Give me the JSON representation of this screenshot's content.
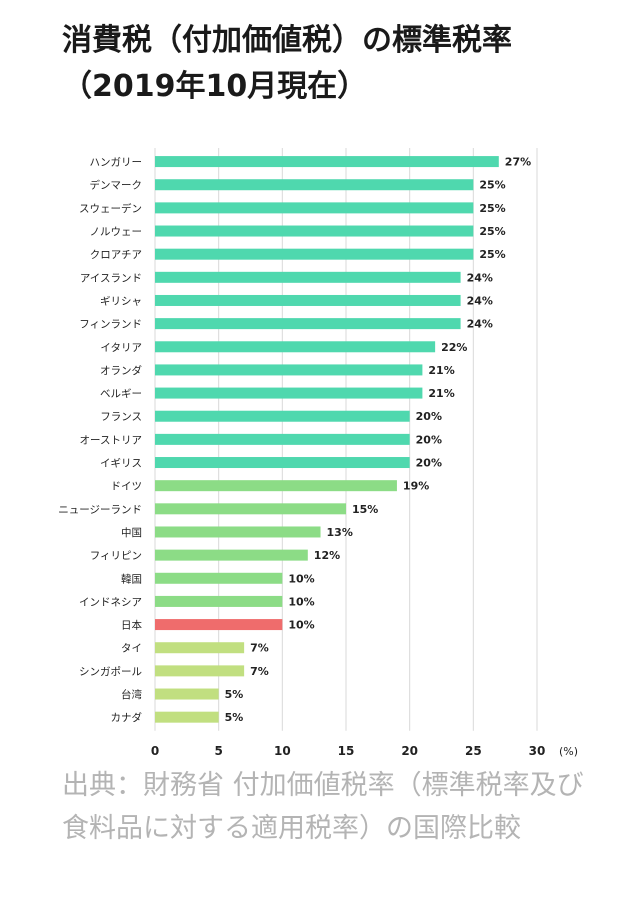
{
  "page": {
    "title_line1": "消費税（付加価値税）の標準税率",
    "title_line2": "（2019年10月現在）",
    "source": "出典：財務省 付加価値税率（標準税率及び食料品に対する適用税率）の国際比較"
  },
  "colors": {
    "tier_high": "#4fd8ae",
    "tier_mid": "#8cdc86",
    "tier_low": "#c1df80",
    "highlight": "#ef6c6c",
    "grid": "#d9d9d9",
    "text": "#222222"
  },
  "chart_data": {
    "type": "bar",
    "orientation": "horizontal",
    "categories": [
      "ハンガリー",
      "デンマーク",
      "スウェーデン",
      "ノルウェー",
      "クロアチア",
      "アイスランド",
      "ギリシャ",
      "フィンランド",
      "イタリア",
      "オランダ",
      "ベルギー",
      "フランス",
      "オーストリア",
      "イギリス",
      "ドイツ",
      "ニュージーランド",
      "中国",
      "フィリピン",
      "韓国",
      "インドネシア",
      "日本",
      "タイ",
      "シンガポール",
      "台湾",
      "カナダ"
    ],
    "values": [
      27,
      25,
      25,
      25,
      25,
      24,
      24,
      24,
      22,
      21,
      21,
      20,
      20,
      20,
      19,
      15,
      13,
      12,
      10,
      10,
      10,
      7,
      7,
      5,
      5
    ],
    "value_labels": [
      "27%",
      "25%",
      "25%",
      "25%",
      "25%",
      "24%",
      "24%",
      "24%",
      "22%",
      "21%",
      "21%",
      "20%",
      "20%",
      "20%",
      "19%",
      "15%",
      "13%",
      "12%",
      "10%",
      "10%",
      "10%",
      "7%",
      "7%",
      "5%",
      "5%"
    ],
    "highlight_category": "日本",
    "xlim": [
      0,
      30
    ],
    "xticks": [
      0,
      5,
      10,
      15,
      20,
      25,
      30
    ],
    "xlabel": "(%)",
    "grid": true
  }
}
